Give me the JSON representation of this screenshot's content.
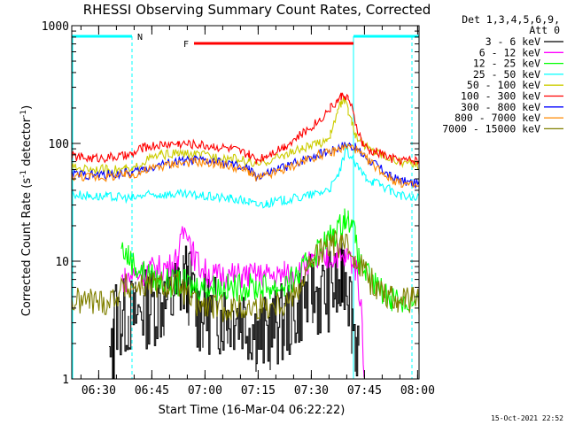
{
  "chart_data": {
    "type": "line",
    "title": "RHESSI Observing Summary Count Rates, Corrected",
    "xlabel": "Start Time (16-Mar-04 06:22:22)",
    "ylabel": "Corrected Count Rate (s⁻¹ detector⁻¹)",
    "ylabel_main": "Corrected Count Rate (s",
    "ylabel_sup1": "-1",
    "ylabel_mid": " detector",
    "ylabel_sup2": "-1",
    "ylabel_end": ")",
    "yscale": "log",
    "xlim_minutes": [
      0,
      98
    ],
    "ylim": [
      1,
      1000
    ],
    "x_ticks": [
      {
        "label": "06:30",
        "min": 7.6
      },
      {
        "label": "06:45",
        "min": 22.6
      },
      {
        "label": "07:00",
        "min": 37.6
      },
      {
        "label": "07:15",
        "min": 52.6
      },
      {
        "label": "07:30",
        "min": 67.6
      },
      {
        "label": "07:45",
        "min": 82.6
      },
      {
        "label": "08:00",
        "min": 97.6
      }
    ],
    "y_ticks": [
      {
        "label": "1000",
        "value": 1000
      },
      {
        "label": "100",
        "value": 100
      },
      {
        "label": "10",
        "value": 10
      },
      {
        "label": "1",
        "value": 1
      }
    ],
    "legend_header_1": "Det 1,3,4,5,6,9,",
    "legend_header_2": "Att 0",
    "series": [
      {
        "name": "3 - 6 keV",
        "color": "#000000",
        "x": [
          0,
          10,
          10.5,
          11.5,
          12,
          12,
          14,
          16,
          18,
          20,
          22,
          26,
          28,
          30,
          31.5,
          33,
          35,
          36,
          37,
          38,
          40,
          42,
          44,
          46,
          48,
          50,
          52,
          54,
          56,
          58,
          60,
          62,
          64,
          66,
          68,
          70,
          72,
          74,
          75,
          76,
          76.5,
          77.5,
          78,
          79,
          80,
          81,
          81.5,
          82,
          98
        ],
        "y": [
          null,
          null,
          1.3,
          1.5,
          2,
          3.5,
          3.2,
          3.5,
          3.4,
          3.8,
          4.2,
          4.3,
          4.5,
          6,
          7,
          6.3,
          4,
          3.5,
          3.5,
          3.6,
          3.5,
          3.5,
          3.5,
          3.6,
          3.5,
          3,
          2.5,
          2.3,
          2.5,
          2.8,
          3,
          3.5,
          4.2,
          5,
          5.3,
          5,
          5.5,
          6,
          5.5,
          6.5,
          8,
          8.5,
          6,
          3.5,
          2.2,
          1.8,
          null,
          null,
          null
        ]
      },
      {
        "name": "6 - 12 keV",
        "color": "#ff00ff",
        "x": [
          0,
          14,
          14,
          15,
          17,
          20,
          22,
          24,
          26,
          28,
          30,
          31.5,
          32.5,
          34,
          36,
          38,
          40,
          42,
          44,
          46,
          48,
          50,
          52,
          54,
          56,
          58,
          60,
          62,
          64,
          66,
          68,
          70,
          72,
          74,
          75,
          76,
          77,
          78,
          79,
          80,
          81,
          82,
          82.5,
          83,
          98
        ],
        "y": [
          null,
          null,
          7,
          7,
          7.5,
          8,
          8.5,
          8.5,
          9,
          9,
          11,
          17,
          20,
          12,
          9,
          8,
          7.5,
          7.5,
          7.5,
          7.5,
          7.5,
          7.5,
          7.5,
          7.5,
          7.5,
          7.5,
          7.8,
          8,
          8.5,
          9,
          9.5,
          10,
          10.5,
          11,
          11.5,
          10,
          10.5,
          11,
          10,
          9,
          6,
          3,
          1,
          null,
          null
        ]
      },
      {
        "name": "12 - 25 keV",
        "color": "#00ff00",
        "x": [
          0,
          14,
          14,
          16,
          18,
          20,
          22,
          24,
          26,
          28,
          30,
          32,
          34,
          36,
          38,
          40,
          42,
          44,
          46,
          48,
          50,
          52,
          54,
          56,
          58,
          60,
          62,
          64,
          66,
          68,
          70,
          72,
          74,
          76,
          77,
          78,
          79,
          80,
          81,
          82,
          83,
          84,
          86,
          88,
          90,
          92,
          94,
          96,
          98
        ],
        "y": [
          null,
          null,
          13,
          11,
          9,
          8,
          7.5,
          7,
          6.8,
          6.5,
          6.5,
          6.5,
          6.2,
          6,
          6,
          6,
          6,
          6,
          6,
          6,
          6,
          6,
          6,
          6,
          6,
          6.3,
          6.8,
          7.5,
          9,
          11,
          13,
          15,
          17,
          20,
          24,
          22,
          25,
          15,
          10,
          9,
          8,
          7,
          6,
          5.5,
          5,
          4.8,
          4.5,
          4.3,
          4.2
        ]
      },
      {
        "name": "25 - 50 keV",
        "color": "#00ffff",
        "x": [
          0,
          5,
          10,
          15,
          17,
          20,
          25,
          30,
          35,
          40,
          45,
          50,
          52,
          55,
          60,
          65,
          70,
          73,
          75,
          76.5,
          77.5,
          79,
          81,
          83,
          85,
          87,
          90,
          93,
          96,
          98
        ],
        "y": [
          37,
          36,
          35,
          35,
          34,
          36,
          37,
          37,
          36,
          35,
          34,
          32,
          30,
          31,
          33,
          35,
          38,
          42,
          52,
          70,
          90,
          75,
          60,
          52,
          48,
          45,
          40,
          36,
          34,
          34
        ]
      },
      {
        "name": "50 - 100 keV",
        "color": "#cccc00",
        "x": [
          0,
          5,
          10,
          15,
          17,
          20,
          25,
          30,
          35,
          40,
          45,
          50,
          52,
          55,
          60,
          65,
          70,
          72,
          73,
          74,
          75,
          76,
          77,
          78,
          79,
          80,
          82,
          84,
          86,
          88,
          90,
          93,
          96,
          98
        ],
        "y": [
          62,
          61,
          60,
          60,
          58,
          70,
          80,
          82,
          80,
          78,
          75,
          70,
          65,
          70,
          80,
          90,
          100,
          110,
          120,
          145,
          190,
          220,
          230,
          190,
          150,
          120,
          100,
          90,
          85,
          80,
          75,
          70,
          66,
          66
        ]
      },
      {
        "name": "100 - 300 keV",
        "color": "#ff0000",
        "x": [
          0,
          3,
          6,
          10,
          15,
          17,
          20,
          25,
          30,
          35,
          40,
          45,
          50,
          52,
          55,
          60,
          65,
          70,
          73,
          75,
          76,
          77,
          78,
          79,
          80,
          82,
          84,
          86,
          88,
          90,
          93,
          96,
          98
        ],
        "y": [
          78,
          76,
          75,
          76,
          78,
          80,
          92,
          98,
          100,
          98,
          95,
          90,
          80,
          72,
          80,
          95,
          120,
          160,
          200,
          230,
          250,
          260,
          240,
          200,
          150,
          100,
          85,
          85,
          80,
          75,
          72,
          72,
          72
        ]
      },
      {
        "name": "300 - 800 keV",
        "color": "#0000ff",
        "x": [
          0,
          5,
          10,
          15,
          17,
          20,
          25,
          30,
          35,
          40,
          45,
          50,
          52,
          55,
          60,
          65,
          70,
          74,
          76,
          78,
          80,
          82,
          84,
          86,
          88,
          90,
          93,
          96,
          98
        ],
        "y": [
          55,
          54,
          54,
          56,
          56,
          60,
          66,
          70,
          72,
          70,
          66,
          60,
          52,
          55,
          63,
          72,
          82,
          88,
          95,
          98,
          92,
          80,
          72,
          65,
          58,
          52,
          48,
          46,
          45
        ]
      },
      {
        "name": "800 - 7000 keV",
        "color": "#ff8800",
        "x": [
          0,
          5,
          10,
          15,
          17,
          20,
          25,
          30,
          35,
          40,
          45,
          50,
          52,
          55,
          60,
          65,
          70,
          74,
          76,
          78,
          80,
          82,
          84,
          86,
          88,
          90,
          93,
          96,
          98
        ],
        "y": [
          53,
          52,
          52,
          54,
          54,
          58,
          64,
          68,
          70,
          68,
          64,
          58,
          50,
          53,
          60,
          70,
          80,
          85,
          90,
          95,
          90,
          78,
          70,
          63,
          56,
          50,
          46,
          44,
          43
        ]
      },
      {
        "name": "7000 - 15000 keV",
        "color": "#808000",
        "x": [
          0,
          5,
          10,
          15,
          20,
          25,
          30,
          35,
          40,
          45,
          50,
          55,
          60,
          62,
          64,
          66,
          68,
          70,
          72,
          74,
          76,
          78,
          80,
          82,
          84,
          86,
          88,
          90,
          92,
          94,
          96,
          98
        ],
        "y": [
          4.5,
          4.6,
          4.5,
          6,
          6.2,
          6.2,
          6.3,
          4.2,
          4,
          4,
          4,
          4.2,
          4.5,
          5,
          6,
          8,
          10,
          12,
          13,
          14,
          14,
          13,
          11,
          9,
          7,
          6,
          5.5,
          5,
          4.8,
          4.6,
          4.6,
          4.6
        ]
      }
    ],
    "annotations": [
      {
        "text": "N",
        "color": "#00ffff",
        "kind": "night",
        "start_min": 0,
        "end_min": 17
      },
      {
        "text": "",
        "color": "#00ffff",
        "kind": "night",
        "start_min": 79.5,
        "end_min": 98
      },
      {
        "text": "F",
        "color": "#ff0000",
        "kind": "flare",
        "start_min": 31,
        "end_min": 79.5
      }
    ],
    "timestamp": "15-Oct-2021 22:52"
  }
}
